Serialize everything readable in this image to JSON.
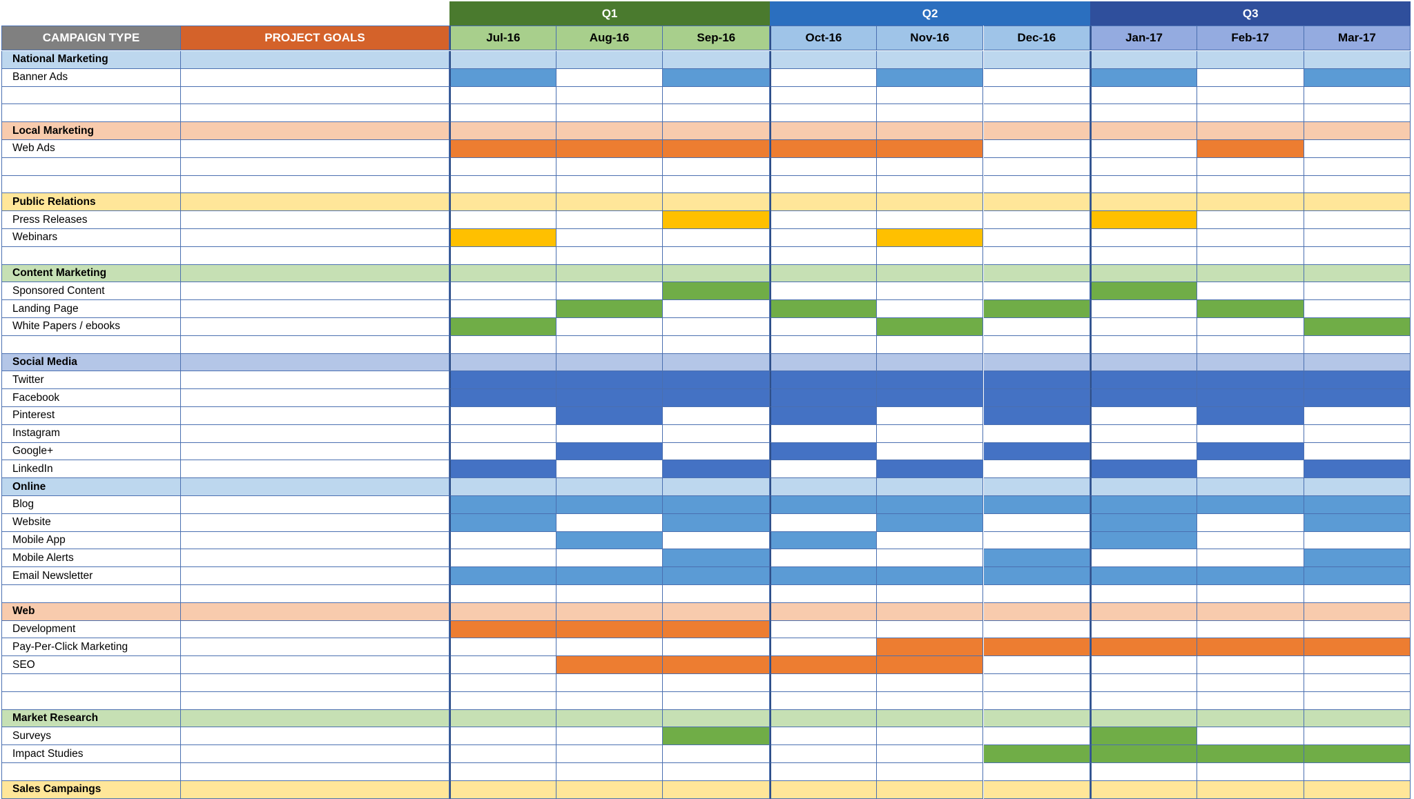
{
  "header": {
    "campaign_type": "CAMPAIGN TYPE",
    "project_goals": "PROJECT GOALS",
    "quarters": [
      {
        "label": "Q1",
        "color": "#4a7a2e"
      },
      {
        "label": "Q2",
        "color": "#2b6fbf"
      },
      {
        "label": "Q3",
        "color": "#2f4f9c"
      }
    ],
    "months": [
      "Jul-16",
      "Aug-16",
      "Sep-16",
      "Oct-16",
      "Nov-16",
      "Dec-16",
      "Jan-17",
      "Feb-17",
      "Mar-17"
    ]
  },
  "colors": {
    "campaign_header": "#808080",
    "goals_header": "#d4622a",
    "month_header_q1": "#a8cf8c",
    "month_header_q2": "#9fc4e8",
    "month_header_q3": "#94abe0",
    "light_blue": "#bdd7ee",
    "light_orange": "#f8cbad",
    "light_yellow": "#ffe699",
    "light_green": "#c6e0b4",
    "light_indigo": "#b4c6e7",
    "blue": "#5b9bd5",
    "orange": "#ed7d31",
    "yellow": "#ffc000",
    "green": "#70ad47",
    "indigo": "#4472c4"
  },
  "rows": [
    {
      "label": "National Marketing",
      "type": "category",
      "bg": "light_blue"
    },
    {
      "label": "Banner Ads",
      "type": "item",
      "color": "blue",
      "filled": [
        0,
        2,
        4,
        6,
        8
      ]
    },
    {
      "label": "",
      "type": "blank"
    },
    {
      "label": "",
      "type": "blank"
    },
    {
      "label": "Local Marketing",
      "type": "category",
      "bg": "light_orange"
    },
    {
      "label": "Web Ads",
      "type": "item",
      "color": "orange",
      "filled": [
        0,
        1,
        2,
        3,
        4,
        7
      ]
    },
    {
      "label": "",
      "type": "blank"
    },
    {
      "label": "",
      "type": "blank"
    },
    {
      "label": "Public Relations",
      "type": "category",
      "bg": "light_yellow"
    },
    {
      "label": "Press Releases",
      "type": "item",
      "color": "yellow",
      "filled": [
        2,
        6
      ]
    },
    {
      "label": "Webinars",
      "type": "item",
      "color": "yellow",
      "filled": [
        0,
        4
      ]
    },
    {
      "label": "",
      "type": "blank"
    },
    {
      "label": "Content Marketing",
      "type": "category",
      "bg": "light_green"
    },
    {
      "label": "Sponsored Content",
      "type": "item",
      "color": "green",
      "filled": [
        2,
        6
      ]
    },
    {
      "label": "Landing Page",
      "type": "item",
      "color": "green",
      "filled": [
        1,
        3,
        5,
        7
      ]
    },
    {
      "label": "White Papers / ebooks",
      "type": "item",
      "color": "green",
      "filled": [
        0,
        4,
        8
      ]
    },
    {
      "label": "",
      "type": "blank"
    },
    {
      "label": "Social Media",
      "type": "category",
      "bg": "light_indigo"
    },
    {
      "label": "Twitter",
      "type": "item",
      "color": "indigo",
      "filled": [
        0,
        1,
        2,
        3,
        4,
        5,
        6,
        7,
        8
      ]
    },
    {
      "label": "Facebook",
      "type": "item",
      "color": "indigo",
      "filled": [
        0,
        1,
        2,
        3,
        4,
        5,
        6,
        7,
        8
      ]
    },
    {
      "label": "Pinterest",
      "type": "item",
      "color": "indigo",
      "filled": [
        1,
        3,
        5,
        7
      ]
    },
    {
      "label": "Instagram",
      "type": "item",
      "color": "indigo",
      "filled": []
    },
    {
      "label": "Google+",
      "type": "item",
      "color": "indigo",
      "filled": [
        1,
        3,
        5,
        7
      ]
    },
    {
      "label": "LinkedIn",
      "type": "item",
      "color": "indigo",
      "filled": [
        0,
        2,
        4,
        6,
        8
      ]
    },
    {
      "label": "Online",
      "type": "category",
      "bg": "light_blue"
    },
    {
      "label": "Blog",
      "type": "item",
      "color": "blue",
      "filled": [
        0,
        1,
        2,
        3,
        4,
        5,
        6,
        7,
        8
      ]
    },
    {
      "label": "Website",
      "type": "item",
      "color": "blue",
      "filled": [
        0,
        2,
        4,
        6,
        8
      ]
    },
    {
      "label": "Mobile App",
      "type": "item",
      "color": "blue",
      "filled": [
        1,
        3,
        6
      ]
    },
    {
      "label": "Mobile Alerts",
      "type": "item",
      "color": "blue",
      "filled": [
        2,
        5,
        8
      ]
    },
    {
      "label": "Email Newsletter",
      "type": "item",
      "color": "blue",
      "filled": [
        0,
        1,
        2,
        3,
        4,
        5,
        6,
        7,
        8
      ]
    },
    {
      "label": "",
      "type": "blank"
    },
    {
      "label": "Web",
      "type": "category",
      "bg": "light_orange"
    },
    {
      "label": "Development",
      "type": "item",
      "color": "orange",
      "filled": [
        0,
        1,
        2
      ]
    },
    {
      "label": "Pay-Per-Click Marketing",
      "type": "item",
      "color": "orange",
      "filled": [
        4,
        5,
        6,
        7,
        8
      ]
    },
    {
      "label": "SEO",
      "type": "item",
      "color": "orange",
      "filled": [
        1,
        2,
        3,
        4
      ]
    },
    {
      "label": "",
      "type": "blank"
    },
    {
      "label": "",
      "type": "blank"
    },
    {
      "label": "Market Research",
      "type": "category",
      "bg": "light_green"
    },
    {
      "label": "Surveys",
      "type": "item",
      "color": "green",
      "filled": [
        2,
        6
      ]
    },
    {
      "label": "Impact Studies",
      "type": "item",
      "color": "green",
      "filled": [
        5,
        6,
        7,
        8
      ]
    },
    {
      "label": "",
      "type": "blank"
    },
    {
      "label": "Sales Campaings",
      "type": "category",
      "bg": "light_yellow"
    }
  ]
}
